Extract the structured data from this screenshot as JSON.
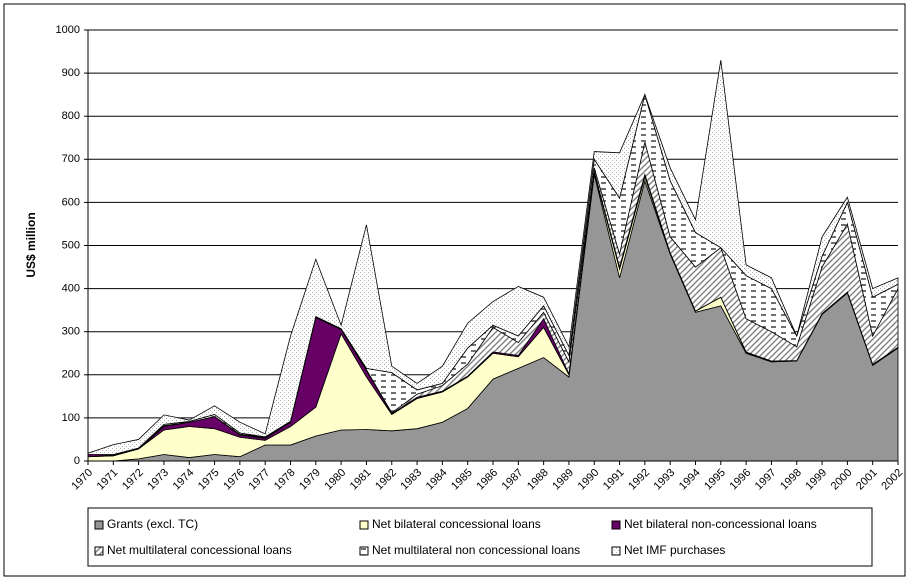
{
  "chart_data": {
    "type": "stacked-area",
    "y_label": "US$ million",
    "categories": [
      "1970",
      "1971",
      "1972",
      "1973",
      "1974",
      "1975",
      "1976",
      "1977",
      "1978",
      "1979",
      "1980",
      "1981",
      "1982",
      "1983",
      "1984",
      "1985",
      "1986",
      "1987",
      "1988",
      "1989",
      "1990",
      "1991",
      "1992",
      "1993",
      "1994",
      "1995",
      "1996",
      "1997",
      "1998",
      "1999",
      "2000",
      "2001",
      "2002"
    ],
    "series": [
      {
        "name": "Grants  (excl. TC)",
        "color": "#969696",
        "pattern": "solid",
        "values": [
          0,
          0,
          5,
          15,
          8,
          15,
          10,
          37,
          37,
          58,
          72,
          73,
          70,
          75,
          90,
          122,
          190,
          215,
          240,
          195,
          665,
          425,
          650,
          480,
          345,
          360,
          250,
          230,
          232,
          340,
          390,
          222,
          262
        ]
      },
      {
        "name": "Net bilateral concessional loans",
        "color": "#ffffcc",
        "pattern": "solid",
        "values": [
          10,
          12,
          23,
          57,
          72,
          60,
          45,
          11,
          43,
          67,
          223,
          122,
          38,
          70,
          70,
          73,
          60,
          27,
          70,
          5,
          5,
          20,
          10,
          2,
          3,
          20,
          2,
          2,
          1,
          2,
          2,
          2,
          2
        ]
      },
      {
        "name": "Net bilateral non-concessional loans",
        "color": "#660066",
        "pattern": "solid",
        "values": [
          5,
          2,
          0,
          8,
          10,
          28,
          5,
          5,
          10,
          208,
          10,
          15,
          2,
          3,
          2,
          2,
          3,
          3,
          20,
          2,
          2,
          5,
          5,
          1,
          0,
          0,
          1,
          0,
          0,
          0,
          0,
          0,
          0
        ]
      },
      {
        "name": "Net multilateral concessional loans",
        "color": "#808080",
        "pattern": "diagonal",
        "values": [
          0,
          0,
          0,
          2,
          0,
          0,
          2,
          2,
          0,
          0,
          0,
          2,
          2,
          7,
          13,
          28,
          57,
          30,
          15,
          28,
          8,
          30,
          75,
          37,
          102,
          115,
          77,
          68,
          32,
          108,
          158,
          66,
          136
        ]
      },
      {
        "name": "Net multilateral non concessional loans",
        "color": "#404040",
        "pattern": "dash",
        "values": [
          0,
          1,
          2,
          3,
          2,
          5,
          3,
          1,
          2,
          2,
          2,
          3,
          93,
          10,
          5,
          37,
          5,
          15,
          15,
          15,
          20,
          130,
          110,
          130,
          80,
          0,
          100,
          100,
          25,
          25,
          50,
          90,
          10
        ]
      },
      {
        "name": "Net IMF purchases",
        "color": "#b0b0b0",
        "pattern": "dots",
        "values": [
          3,
          23,
          20,
          22,
          3,
          20,
          25,
          7,
          198,
          133,
          8,
          333,
          15,
          15,
          40,
          58,
          55,
          115,
          20,
          20,
          18,
          105,
          0,
          30,
          30,
          435,
          25,
          25,
          0,
          45,
          12,
          20,
          15
        ]
      }
    ],
    "ylim": [
      0,
      1000
    ],
    "yticks": [
      0,
      100,
      200,
      300,
      400,
      500,
      600,
      700,
      800,
      900,
      1000
    ],
    "grid": true
  }
}
